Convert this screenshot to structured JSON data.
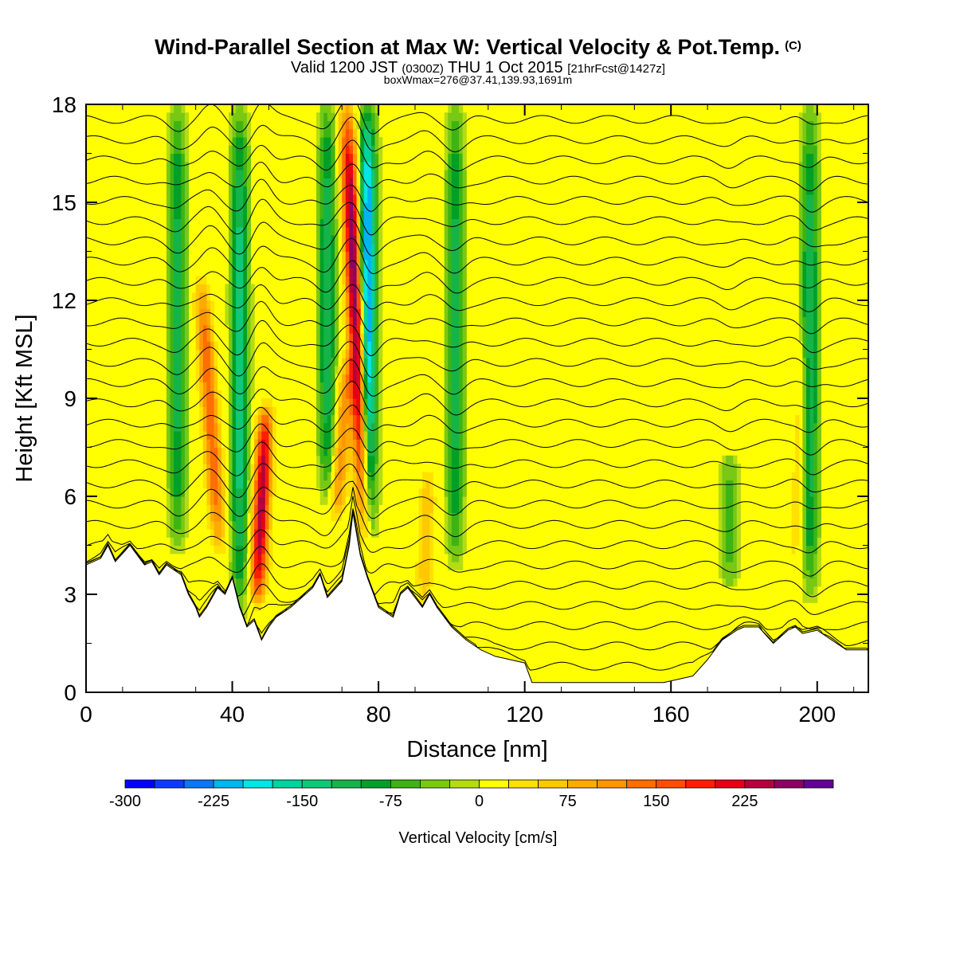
{
  "header": {
    "title": "Wind-Parallel Section at Max W: Vertical Velocity & Pot.Temp.",
    "copyright": "(C)",
    "valid_prefix": "Valid 1200 JST",
    "valid_utc": "(0300Z)",
    "valid_date": "THU 1 Oct 2015",
    "forecast": "[21hrFcst@1427z]",
    "box_info": "boxWmax=276@37.41,139.93,1691m"
  },
  "chart_data": {
    "type": "heatmap",
    "xlabel": "Distance [nm]",
    "ylabel": "Height [Kft MSL]",
    "xlim": [
      0,
      214
    ],
    "ylim": [
      0,
      18
    ],
    "x_ticks": [
      0,
      40,
      80,
      120,
      160,
      200
    ],
    "y_ticks": [
      0,
      3,
      6,
      9,
      12,
      15,
      18
    ],
    "colorbar": {
      "label": "Vertical Velocity [cm/s]",
      "ticks": [
        -300,
        -225,
        -150,
        -75,
        0,
        75,
        150,
        225
      ],
      "min": -300,
      "max": 285,
      "step": 25,
      "colors": [
        "#0000ff",
        "#0a3cff",
        "#0a78f0",
        "#00b4f0",
        "#00e6e6",
        "#00d2a0",
        "#10c878",
        "#14b44a",
        "#00a028",
        "#3cb414",
        "#78c814",
        "#b4dc14",
        "#ffff00",
        "#ffe100",
        "#ffc800",
        "#ffaa00",
        "#ff9600",
        "#ff6e00",
        "#ff5000",
        "#ff1e00",
        "#e60014",
        "#b4003c",
        "#8c0064",
        "#640096"
      ]
    },
    "updraft_cores": [
      {
        "x": 34,
        "z_bottom": 4.5,
        "z_top": 12.5,
        "peak": 150,
        "tilt": -0.6
      },
      {
        "x": 48,
        "z_bottom": 3.0,
        "z_top": 8.5,
        "peak": 240,
        "tilt": 0.4
      },
      {
        "x": 74,
        "z_bottom": 4.0,
        "z_top": 18.0,
        "peak": 280,
        "tilt": -0.4
      },
      {
        "x": 70,
        "z_bottom": 5.5,
        "z_top": 10.0,
        "peak": 110,
        "tilt": 0.6
      },
      {
        "x": 93,
        "z_bottom": 3.0,
        "z_top": 6.5,
        "peak": 70,
        "tilt": 0.3
      },
      {
        "x": 195,
        "z_bottom": 3.5,
        "z_top": 11.0,
        "peak": 40,
        "tilt": 0.2
      }
    ],
    "downdraft_cores": [
      {
        "x": 42,
        "z_bottom": 2.5,
        "z_top": 18.0,
        "peak": -140
      },
      {
        "x": 77,
        "z_bottom": 4.0,
        "z_top": 18.0,
        "peak": -240
      },
      {
        "x": 25,
        "z_bottom": 4.5,
        "z_top": 18.0,
        "peak": -110
      },
      {
        "x": 66,
        "z_bottom": 6.0,
        "z_top": 18.0,
        "peak": -120
      },
      {
        "x": 101,
        "z_bottom": 4.0,
        "z_top": 18.0,
        "peak": -110
      },
      {
        "x": 198,
        "z_bottom": 3.0,
        "z_top": 18.0,
        "peak": -120
      },
      {
        "x": 176,
        "z_bottom": 3.5,
        "z_top": 7.0,
        "peak": -60
      }
    ],
    "terrain": {
      "x": [
        0,
        4,
        6,
        8,
        12,
        16,
        18,
        20,
        22,
        26,
        28,
        30,
        31,
        33,
        36,
        38,
        40,
        42,
        44,
        46,
        48,
        50,
        52,
        56,
        60,
        62,
        64,
        66,
        70,
        72,
        73,
        75,
        77,
        80,
        84,
        86,
        88,
        92,
        94,
        96,
        100,
        104,
        108,
        112,
        116,
        120,
        122,
        126,
        130,
        140,
        150,
        158,
        162,
        166,
        170,
        174,
        178,
        180,
        184,
        188,
        192,
        194,
        196,
        200,
        204,
        208,
        214
      ],
      "z": [
        3.9,
        4.1,
        4.5,
        4.0,
        4.5,
        3.9,
        4.0,
        3.6,
        3.9,
        3.6,
        3.0,
        2.6,
        2.3,
        2.6,
        3.2,
        3.0,
        3.5,
        2.6,
        2.0,
        2.2,
        1.6,
        2.0,
        2.3,
        2.6,
        3.0,
        3.2,
        3.6,
        2.9,
        3.4,
        4.5,
        5.5,
        4.2,
        3.5,
        2.6,
        2.3,
        3.0,
        3.2,
        2.6,
        3.0,
        2.6,
        2.0,
        1.6,
        1.3,
        1.1,
        1.0,
        0.9,
        0.3,
        0.3,
        0.3,
        0.3,
        0.3,
        0.3,
        0.4,
        0.5,
        1.0,
        1.6,
        1.9,
        2.0,
        2.0,
        1.5,
        1.9,
        2.0,
        1.8,
        1.9,
        1.6,
        1.3,
        1.3
      ]
    },
    "theta_contours": 28,
    "plot_background": "#ffff00"
  }
}
